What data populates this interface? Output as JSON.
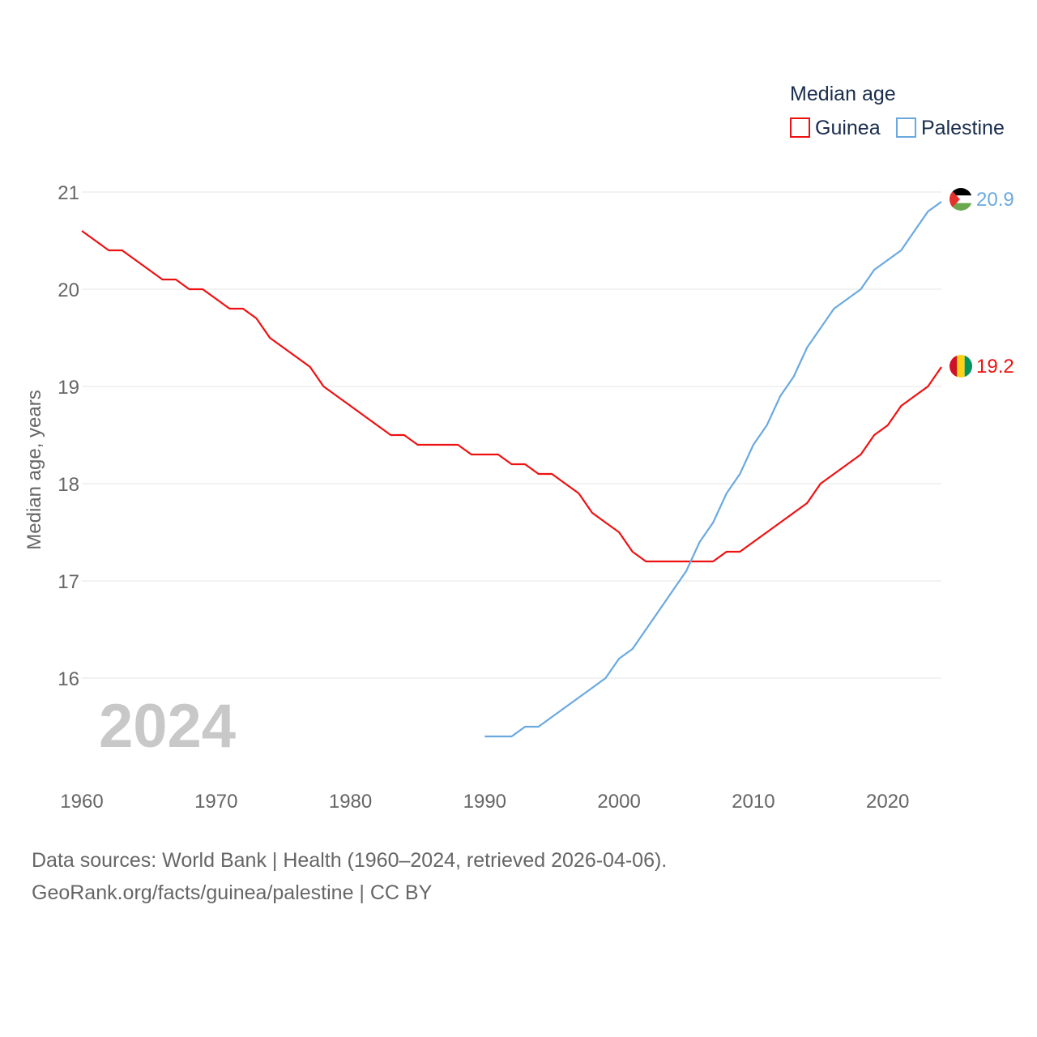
{
  "chart_data": {
    "type": "line",
    "legend_title": "Median age",
    "ylabel": "Median age, years",
    "xlim": [
      1960,
      2024
    ],
    "ylim": [
      15,
      21.3
    ],
    "x_ticks": [
      1960,
      1970,
      1980,
      1990,
      2000,
      2010,
      2020
    ],
    "y_ticks": [
      16,
      17,
      18,
      19,
      20,
      21
    ],
    "year_watermark": "2024",
    "series": [
      {
        "name": "Guinea",
        "color": "#ee1111",
        "end_label": "19.2",
        "flag": "guinea-flag-icon",
        "x": [
          1960,
          1961,
          1962,
          1963,
          1964,
          1965,
          1966,
          1967,
          1968,
          1969,
          1970,
          1971,
          1972,
          1973,
          1974,
          1975,
          1976,
          1977,
          1978,
          1979,
          1980,
          1981,
          1982,
          1983,
          1984,
          1985,
          1986,
          1987,
          1988,
          1989,
          1990,
          1991,
          1992,
          1993,
          1994,
          1995,
          1996,
          1997,
          1998,
          1999,
          2000,
          2001,
          2002,
          2003,
          2004,
          2005,
          2006,
          2007,
          2008,
          2009,
          2010,
          2011,
          2012,
          2013,
          2014,
          2015,
          2016,
          2017,
          2018,
          2019,
          2020,
          2021,
          2022,
          2023,
          2024
        ],
        "values": [
          20.6,
          20.5,
          20.4,
          20.4,
          20.3,
          20.2,
          20.1,
          20.1,
          20.0,
          20.0,
          19.9,
          19.8,
          19.8,
          19.7,
          19.5,
          19.4,
          19.3,
          19.2,
          19.0,
          18.9,
          18.8,
          18.7,
          18.6,
          18.5,
          18.5,
          18.4,
          18.4,
          18.4,
          18.4,
          18.3,
          18.3,
          18.3,
          18.2,
          18.2,
          18.1,
          18.1,
          18.0,
          17.9,
          17.7,
          17.6,
          17.5,
          17.3,
          17.2,
          17.2,
          17.2,
          17.2,
          17.2,
          17.2,
          17.3,
          17.3,
          17.4,
          17.5,
          17.6,
          17.7,
          17.8,
          18.0,
          18.1,
          18.2,
          18.3,
          18.5,
          18.6,
          18.8,
          18.9,
          19.0,
          19.2
        ]
      },
      {
        "name": "Palestine",
        "color": "#6aa9e0",
        "end_label": "20.9",
        "flag": "palestine-flag-icon",
        "x": [
          1990,
          1991,
          1992,
          1993,
          1994,
          1995,
          1996,
          1997,
          1998,
          1999,
          2000,
          2001,
          2002,
          2003,
          2004,
          2005,
          2006,
          2007,
          2008,
          2009,
          2010,
          2011,
          2012,
          2013,
          2014,
          2015,
          2016,
          2017,
          2018,
          2019,
          2020,
          2021,
          2022,
          2023,
          2024
        ],
        "values": [
          15.4,
          15.4,
          15.4,
          15.5,
          15.5,
          15.6,
          15.7,
          15.8,
          15.9,
          16.0,
          16.2,
          16.3,
          16.5,
          16.7,
          16.9,
          17.1,
          17.4,
          17.6,
          17.9,
          18.1,
          18.4,
          18.6,
          18.9,
          19.1,
          19.4,
          19.6,
          19.8,
          19.9,
          20.0,
          20.2,
          20.3,
          20.4,
          20.6,
          20.8,
          20.9
        ]
      }
    ]
  },
  "footer": {
    "sources": "Data sources: World Bank | Health (1960–2024, retrieved 2026-04-06).",
    "url": "GeoRank.org/facts/guinea/palestine | CC BY"
  }
}
